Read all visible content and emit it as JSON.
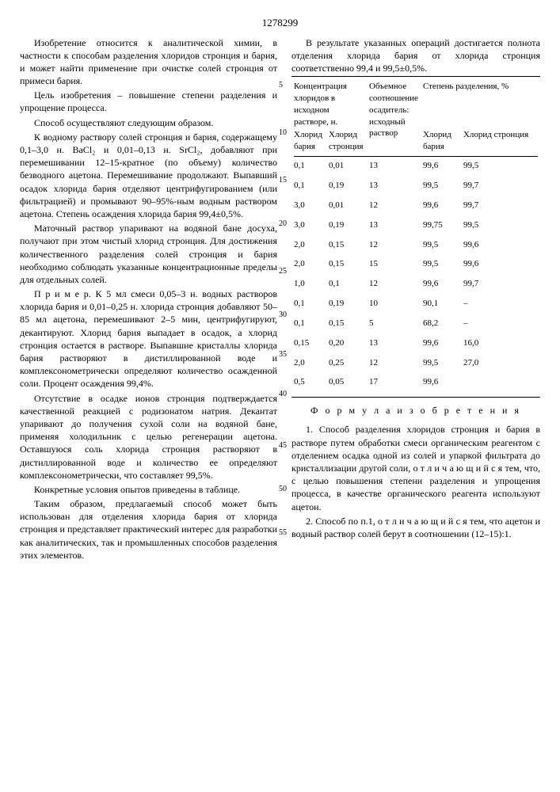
{
  "page_number": "1278299",
  "left_paragraphs": [
    "Изобретение относится к аналитической химии, в частности к способам разделения хлоридов стронция и бария, и может найти применение при очистке солей стронция от примеси бария.",
    "Цель изобретения – повышение степени разделения и упрощение процесса.",
    "Способ осуществляют следующим образом.",
    "К водному раствору солей стронция и бария, содержащему 0,1–3,0 н. BaCl₂ и 0,01–0,13 н. SrCl₂, добавляют при перемешивании 12–15-кратное (по объему) количество безводного ацетона. Перемешивание продолжают. Выпавший осадок хлорида бария отделяют центрифугированием (или фильтрацией) и промывают 90–95%-ным водным раствором ацетона. Степень осаждения хлорида бария 99,4±0,5%.",
    "Маточный раствор упаривают на водяной бане досуха, получают при этом чистый хлорид стронция. Для достижения количественного разделения солей стронция и бария необходимо соблюдать указанные концентрационные пределы для отдельных солей.",
    "П р и м е р. К 5 мл смеси 0,05–3 н. водных растворов хлорида бария и 0,01–0,25 н. хлорида стронция добавляют 50–85 мл ацетона, перемешивают 2–5 мин, центрифугируют, декантируют. Хлорид бария выпадает в осадок, а хлорид стронция остается в растворе. Выпавшие кристаллы хлорида бария растворяют в дистиллированной воде и комплексонометрически определяют количество осажденной соли. Процент осаждения 99,4%.",
    "Отсутствие в осадке ионов стронция подтверждается качественной реакцией с родизонатом натрия. Декантат упаривают до получения сухой соли на водяной бане, применяя холодильник с целью регенерации ацетона. Оставшуюся соль хлорида стронция растворяют в дистиллированной воде и количество ее определяют комплексонометрически, что составляет 99,5%.",
    "Конкретные условия опытов приведены в таблице.",
    "Таким образом, предлагаемый способ может быть использован для отделения хлорида бария от хлорида стронция и представляет практический интерес для разработки как аналитических, так и промышленных способов разделения этих элементов."
  ],
  "right_intro": "В результате указанных операций достигается полнота отделения хлорида бария от хлорида стронция соответственно 99,4 и 99,5±0,5%.",
  "table": {
    "headers": {
      "col1": "Концентрация хлоридов в исходном растворе, н.",
      "col1a": "Хлорид бария",
      "col1b": "Хлорид стронция",
      "col2": "Объемное соотношение осадитель: исходный раствор",
      "col3": "Степень разделения, %",
      "col3a": "Хлорид бария",
      "col3b": "Хлорид стронция"
    },
    "rows": [
      [
        "0,1",
        "0,01",
        "13",
        "99,6",
        "99,5"
      ],
      [
        "0,1",
        "0,19",
        "13",
        "99,5",
        "99,7"
      ],
      [
        "3,0",
        "0,01",
        "12",
        "99,6",
        "99,7"
      ],
      [
        "3,0",
        "0,19",
        "13",
        "99,75",
        "99,5"
      ],
      [
        "2,0",
        "0,15",
        "12",
        "99,5",
        "99,6"
      ],
      [
        "2,0",
        "0,15",
        "15",
        "99,5",
        "99,6"
      ],
      [
        "1,0",
        "0,1",
        "12",
        "99,6",
        "99,7"
      ],
      [
        "0,1",
        "0,19",
        "10",
        "90,1",
        "–"
      ],
      [
        "0,1",
        "0,15",
        "5",
        "68,2",
        "–"
      ],
      [
        "0,15",
        "0,20",
        "13",
        "99,6",
        "16,0"
      ],
      [
        "2,0",
        "0,25",
        "12",
        "99,5",
        "27,0"
      ],
      [
        "0,5",
        "0,05",
        "17",
        "99,6",
        ""
      ]
    ]
  },
  "formula_title": "Ф о р м у л а   и з о б р е т е н и я",
  "claims": [
    "1. Способ разделения хлоридов стронция и бария в растворе путем обработки смеси органическим реагентом с отделением осадка одной из солей и упаркой фильтрата до кристаллизации другой соли, о т л и ч а ю щ и й с я   тем, что, с целью повышения степени разделения и упрощения процесса, в качестве органического реагента используют ацетон.",
    "2. Способ по п.1, о т л и ч а ю щ и й с я   тем, что ацетон и водный раствор солей берут в соотношении (12–15):1."
  ],
  "line_marks": [
    "5",
    "10",
    "15",
    "20",
    "25",
    "30",
    "35",
    "40",
    "45",
    "50",
    "55"
  ]
}
